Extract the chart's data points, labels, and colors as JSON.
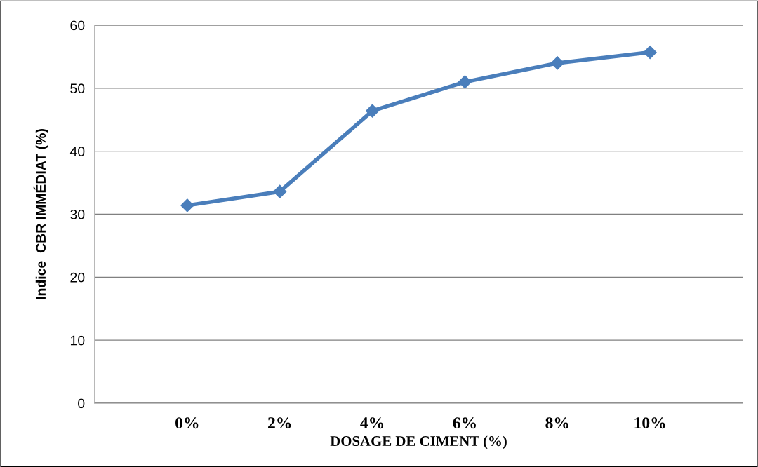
{
  "chart_data": {
    "type": "line",
    "xlabel": "DOSAGE DE CIMENT (%)",
    "ylabel": "Indice  CBR IMMÉDIAT (%)",
    "categories": [
      "0%",
      "2%",
      "4%",
      "6%",
      "8%",
      "10%"
    ],
    "series": [
      {
        "color": "#4a7ebb",
        "values": [
          31.4,
          33.6,
          46.4,
          51.0,
          54.0,
          55.7
        ]
      }
    ],
    "ylim": [
      0,
      60
    ],
    "yticks": [
      0,
      10,
      20,
      30,
      40,
      50,
      60
    ],
    "grid": "y",
    "marker": "diamond",
    "line_style": "solid",
    "legend": false
  }
}
